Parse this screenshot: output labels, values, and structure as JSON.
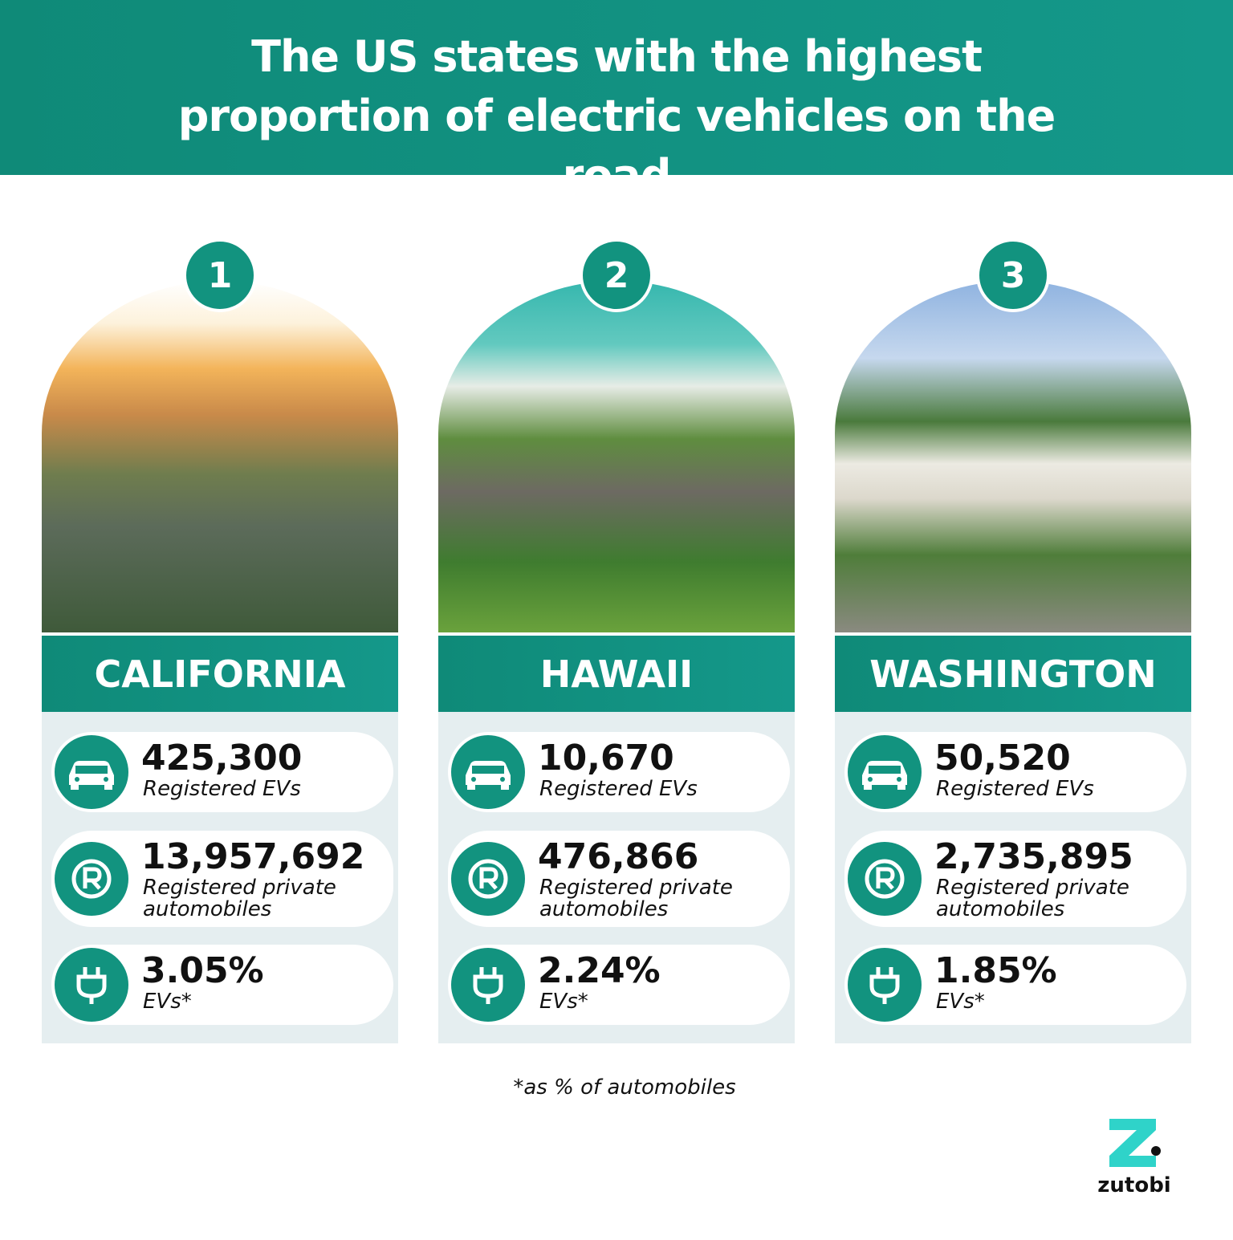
{
  "header": {
    "title": "The US states with the highest proportion of electric vehicles on the road"
  },
  "cards": [
    {
      "rank": "1",
      "state": "CALIFORNIA",
      "stats": [
        {
          "value": "425,300",
          "label": "Registered EVs"
        },
        {
          "value": "13,957,692",
          "label": "Registered private automobiles"
        },
        {
          "value": "3.05%",
          "label": "EVs*"
        }
      ]
    },
    {
      "rank": "2",
      "state": "HAWAII",
      "stats": [
        {
          "value": "10,670",
          "label": "Registered EVs"
        },
        {
          "value": "476,866",
          "label": "Registered private automobiles"
        },
        {
          "value": "2.24%",
          "label": "EVs*"
        }
      ]
    },
    {
      "rank": "3",
      "state": "WASHINGTON",
      "stats": [
        {
          "value": "50,520",
          "label": "Registered EVs"
        },
        {
          "value": "2,735,895",
          "label": "Registered private automobiles"
        },
        {
          "value": "1.85%",
          "label": "EVs*"
        }
      ]
    }
  ],
  "footnote": "*as % of automobiles",
  "logo": {
    "text": "zutobi"
  }
}
